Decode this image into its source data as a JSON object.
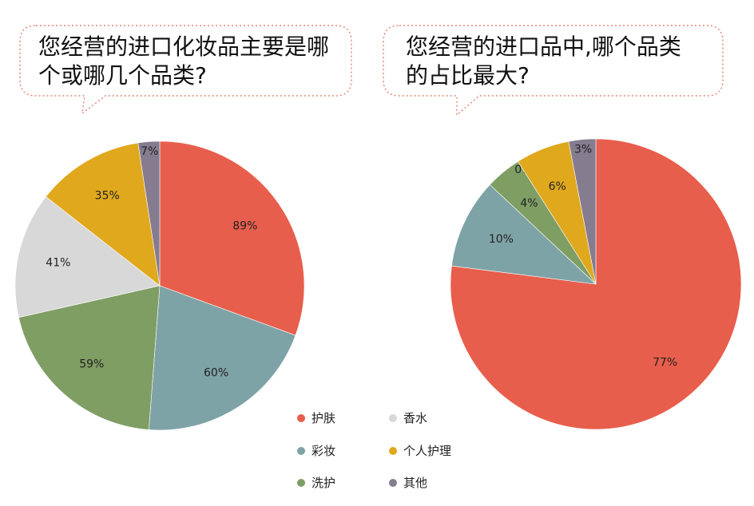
{
  "legend": [
    {
      "label": "护肤",
      "color": "#E85E4C"
    },
    {
      "label": "香水",
      "color": "#D8D8D8"
    },
    {
      "label": "彩妆",
      "color": "#7EA3A6"
    },
    {
      "label": "个人护理",
      "color": "#E0A81D"
    },
    {
      "label": "洗护",
      "color": "#7F9E64"
    },
    {
      "label": "其他",
      "color": "#857C90"
    }
  ],
  "chart_data": [
    {
      "type": "pie",
      "title": "您经营的进口化妆品主要是哪个或哪几个品类?",
      "title_lines": [
        "您经营的进口化妆品主要是哪",
        "个或哪几个品类?"
      ],
      "slices": [
        {
          "label": "护肤",
          "value": 89,
          "display": "89%",
          "color": "#E85E4C"
        },
        {
          "label": "彩妆",
          "value": 60,
          "display": "60%",
          "color": "#7EA3A6"
        },
        {
          "label": "洗护",
          "value": 59,
          "display": "59%",
          "color": "#7F9E64"
        },
        {
          "label": "香水",
          "value": 41,
          "display": "41%",
          "color": "#D8D8D8"
        },
        {
          "label": "个人护理",
          "value": 35,
          "display": "35%",
          "color": "#E0A81D"
        },
        {
          "label": "其他",
          "value": 7,
          "display": "7%",
          "color": "#857C90"
        }
      ]
    },
    {
      "type": "pie",
      "title": "您经营的进口品中,哪个品类的占比最大?",
      "title_lines": [
        "您经营的进口品中,哪个品类",
        "的占比最大?"
      ],
      "slices": [
        {
          "label": "护肤",
          "value": 77,
          "display": "77%",
          "color": "#E85E4C"
        },
        {
          "label": "彩妆",
          "value": 10,
          "display": "10%",
          "color": "#7EA3A6"
        },
        {
          "label": "洗护",
          "value": 4,
          "display": "4%",
          "color": "#7F9E64"
        },
        {
          "label": "香水",
          "value": 0,
          "display": "0%",
          "color": "#D8D8D8"
        },
        {
          "label": "个人护理",
          "value": 6,
          "display": "6%",
          "color": "#E0A81D"
        },
        {
          "label": "其他",
          "value": 3,
          "display": "3%",
          "color": "#857C90"
        }
      ]
    }
  ]
}
